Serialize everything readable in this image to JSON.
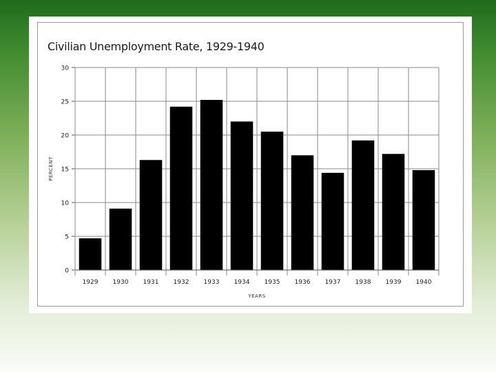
{
  "chart_data": {
    "type": "bar",
    "title": "Civilian Unemployment Rate, 1929-1940",
    "xlabel": "YEARS",
    "ylabel": "PERCENT",
    "categories": [
      "1929",
      "1930",
      "1931",
      "1932",
      "1933",
      "1934",
      "1935",
      "1936",
      "1937",
      "1938",
      "1939",
      "1940"
    ],
    "values": [
      4.7,
      9.1,
      16.3,
      24.2,
      25.2,
      22.0,
      20.5,
      17.0,
      14.4,
      19.2,
      17.2,
      14.8
    ],
    "ylim": [
      0,
      30
    ],
    "yticks": [
      0,
      5,
      10,
      15,
      20,
      25,
      30
    ],
    "grid": true,
    "bar_color": "#000000"
  }
}
